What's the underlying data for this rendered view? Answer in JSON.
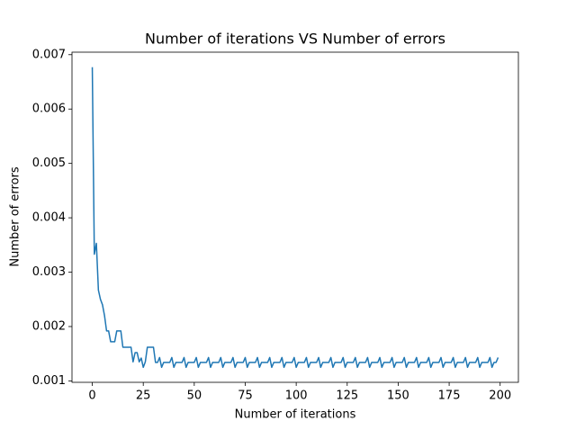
{
  "chart_data": {
    "type": "line",
    "title": "Number of iterations VS Number of errors",
    "x_label": "Number of iterations",
    "y_label": "Number of errors",
    "color": "#1f77b4",
    "xlim": [
      -9.95,
      208.95
    ],
    "ylim": [
      0.000974,
      0.007046
    ],
    "xticks": [
      0,
      25,
      50,
      75,
      100,
      125,
      150,
      175,
      200
    ],
    "yticks": [
      0.001,
      0.002,
      0.003,
      0.004,
      0.005,
      0.006,
      0.007
    ],
    "x": [
      0,
      1,
      2,
      3,
      4,
      5,
      6,
      7,
      8,
      9,
      10,
      11,
      12,
      13,
      14,
      15,
      16,
      17,
      18,
      19,
      20,
      21,
      22,
      23,
      24,
      25,
      26,
      27,
      28,
      29,
      30,
      31,
      32,
      33,
      34,
      35,
      36,
      37,
      38,
      39,
      40,
      41,
      42,
      43,
      44,
      45,
      46,
      47,
      48,
      49,
      50,
      51,
      52,
      53,
      54,
      55,
      56,
      57,
      58,
      59,
      60,
      61,
      62,
      63,
      64,
      65,
      66,
      67,
      68,
      69,
      70,
      71,
      72,
      73,
      74,
      75,
      76,
      77,
      78,
      79,
      80,
      81,
      82,
      83,
      84,
      85,
      86,
      87,
      88,
      89,
      90,
      91,
      92,
      93,
      94,
      95,
      96,
      97,
      98,
      99,
      100,
      101,
      102,
      103,
      104,
      105,
      106,
      107,
      108,
      109,
      110,
      111,
      112,
      113,
      114,
      115,
      116,
      117,
      118,
      119,
      120,
      121,
      122,
      123,
      124,
      125,
      126,
      127,
      128,
      129,
      130,
      131,
      132,
      133,
      134,
      135,
      136,
      137,
      138,
      139,
      140,
      141,
      142,
      143,
      144,
      145,
      146,
      147,
      148,
      149,
      150,
      151,
      152,
      153,
      154,
      155,
      156,
      157,
      158,
      159,
      160,
      161,
      162,
      163,
      164,
      165,
      166,
      167,
      168,
      169,
      170,
      171,
      172,
      173,
      174,
      175,
      176,
      177,
      178,
      179,
      180,
      181,
      182,
      183,
      184,
      185,
      186,
      187,
      188,
      189,
      190,
      191,
      192,
      193,
      194,
      195,
      196,
      197,
      198,
      199
    ],
    "values": [
      0.00677,
      0.00333,
      0.00353,
      0.00267,
      0.0025,
      0.0024,
      0.0022,
      0.00192,
      0.00192,
      0.00172,
      0.00172,
      0.00172,
      0.00192,
      0.00192,
      0.00192,
      0.00162,
      0.00162,
      0.00162,
      0.00162,
      0.00162,
      0.00135,
      0.00152,
      0.00152,
      0.00135,
      0.00142,
      0.00125,
      0.00135,
      0.00162,
      0.00162,
      0.00162,
      0.00162,
      0.00134,
      0.00134,
      0.00143,
      0.00125,
      0.00134,
      0.00134,
      0.00134,
      0.00134,
      0.00143,
      0.00125,
      0.00134,
      0.00134,
      0.00134,
      0.00134,
      0.00143,
      0.00125,
      0.00134,
      0.00134,
      0.00134,
      0.00134,
      0.00143,
      0.00125,
      0.00134,
      0.00134,
      0.00134,
      0.00134,
      0.00143,
      0.00125,
      0.00134,
      0.00134,
      0.00134,
      0.00134,
      0.00143,
      0.00125,
      0.00134,
      0.00134,
      0.00134,
      0.00134,
      0.00143,
      0.00125,
      0.00134,
      0.00134,
      0.00134,
      0.00134,
      0.00143,
      0.00125,
      0.00134,
      0.00134,
      0.00134,
      0.00134,
      0.00143,
      0.00125,
      0.00134,
      0.00134,
      0.00134,
      0.00134,
      0.00143,
      0.00125,
      0.00134,
      0.00134,
      0.00134,
      0.00134,
      0.00143,
      0.00125,
      0.00134,
      0.00134,
      0.00134,
      0.00134,
      0.00143,
      0.00125,
      0.00134,
      0.00134,
      0.00134,
      0.00134,
      0.00143,
      0.00125,
      0.00134,
      0.00134,
      0.00134,
      0.00134,
      0.00143,
      0.00125,
      0.00134,
      0.00134,
      0.00134,
      0.00134,
      0.00143,
      0.00125,
      0.00134,
      0.00134,
      0.00134,
      0.00134,
      0.00143,
      0.00125,
      0.00134,
      0.00134,
      0.00134,
      0.00134,
      0.00143,
      0.00125,
      0.00134,
      0.00134,
      0.00134,
      0.00134,
      0.00143,
      0.00125,
      0.00134,
      0.00134,
      0.00134,
      0.00134,
      0.00143,
      0.00125,
      0.00134,
      0.00134,
      0.00134,
      0.00134,
      0.00143,
      0.00125,
      0.00134,
      0.00134,
      0.00134,
      0.00134,
      0.00143,
      0.00125,
      0.00134,
      0.00134,
      0.00134,
      0.00134,
      0.00143,
      0.00125,
      0.00134,
      0.00134,
      0.00134,
      0.00134,
      0.00143,
      0.00125,
      0.00134,
      0.00134,
      0.00134,
      0.00134,
      0.00143,
      0.00125,
      0.00134,
      0.00134,
      0.00134,
      0.00134,
      0.00143,
      0.00125,
      0.00134,
      0.00134,
      0.00134,
      0.00134,
      0.00143,
      0.00125,
      0.00134,
      0.00134,
      0.00134,
      0.00134,
      0.00143,
      0.00125,
      0.00134,
      0.00134,
      0.00134,
      0.00134,
      0.00143,
      0.00125,
      0.00134,
      0.00134,
      0.00143
    ]
  }
}
